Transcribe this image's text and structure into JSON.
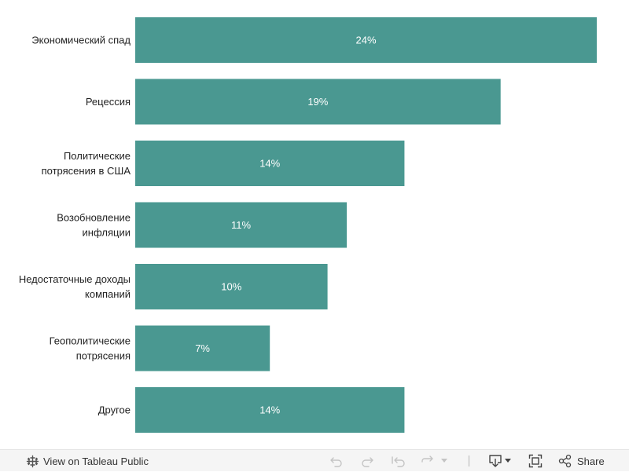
{
  "chart_data": {
    "type": "bar",
    "orientation": "horizontal",
    "categories": [
      "Экономический спад",
      "Рецессия",
      "Политические потрясения в США",
      "Возобновление инфляции",
      "Недостаточные доходы компаний",
      "Геополитические потрясения",
      "Другое"
    ],
    "category_lines": [
      [
        "Экономический спад"
      ],
      [
        "Рецессия"
      ],
      [
        "Политические",
        "потрясения в США"
      ],
      [
        "Возобновление",
        "инфляции"
      ],
      [
        "Недостаточные доходы",
        "компаний"
      ],
      [
        "Геополитические",
        "потрясения"
      ],
      [
        "Другое"
      ]
    ],
    "values": [
      24,
      19,
      14,
      11,
      10,
      7,
      14
    ],
    "data_labels": [
      "24%",
      "19%",
      "14%",
      "11%",
      "10%",
      "7%",
      "14%"
    ],
    "unit": "%",
    "xlim": [
      0,
      24
    ],
    "bar_color": "#4a9891",
    "label_color": "#ffffff",
    "grid": false,
    "legend": "none"
  },
  "toolbar": {
    "view_on_label": "View on Tableau Public",
    "share_label": "Share",
    "icons": {
      "tableau": "tableau-logo-icon",
      "undo": "undo-icon",
      "redo": "redo-icon",
      "revert": "revert-icon",
      "refresh": "refresh-icon",
      "download": "download-icon",
      "fullscreen": "fullscreen-icon",
      "share": "share-icon"
    }
  }
}
